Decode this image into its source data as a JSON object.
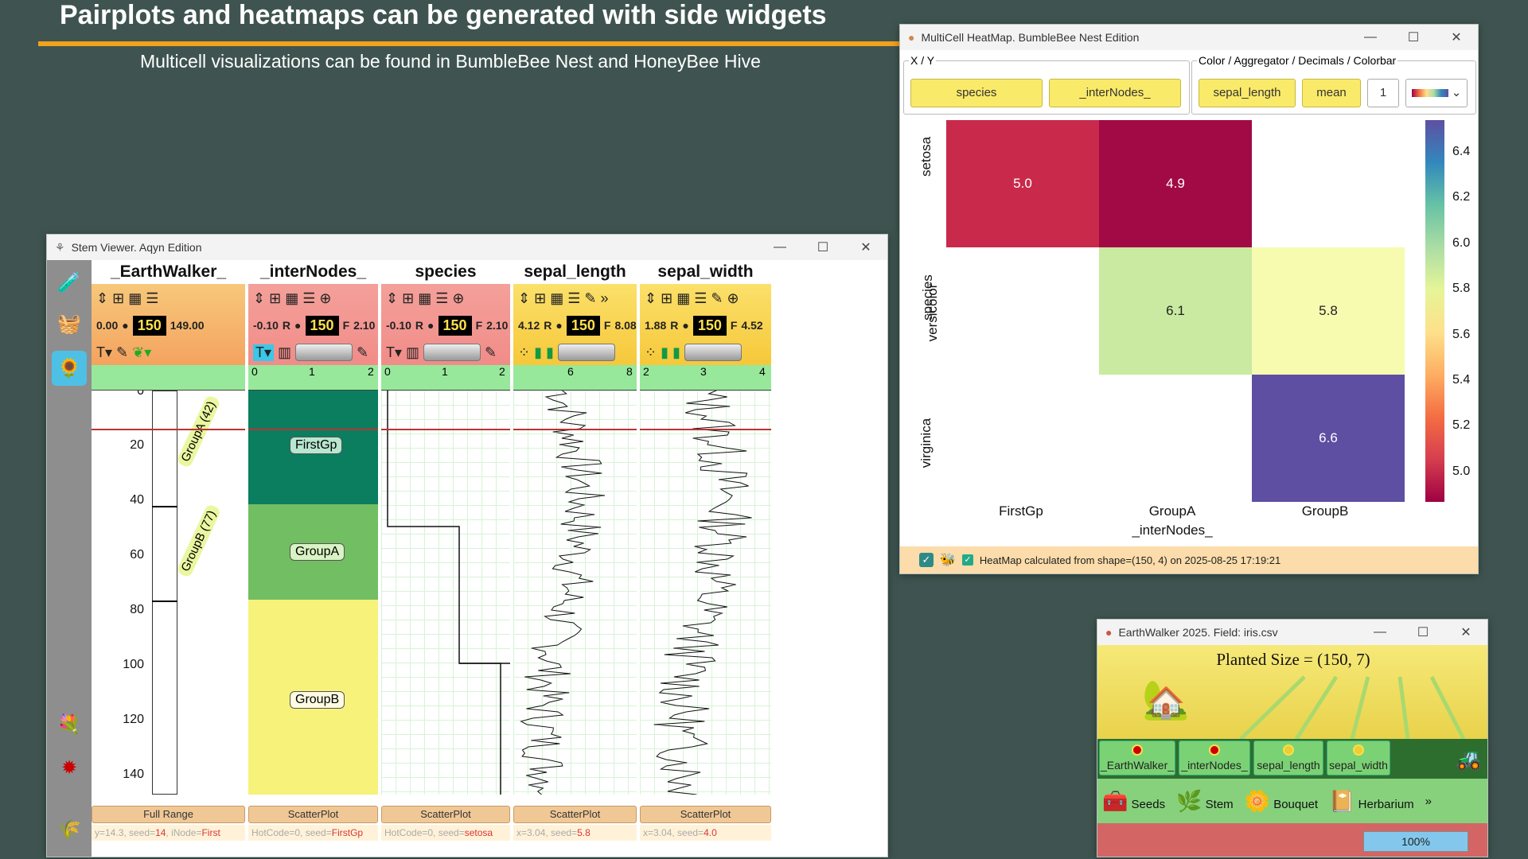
{
  "slide": {
    "title": "Pairplots and heatmaps can be generated with side widgets",
    "subtitle": "Multicell visualizations can be found in BumbleBee Nest and HoneyBee Hive"
  },
  "stem_viewer": {
    "title": "Stem Viewer. Aqyn Edition",
    "columns": [
      {
        "header": "_EarthWalker_",
        "left": "0.00",
        "count": "150",
        "right": "149.00",
        "footer": "Full Range",
        "status_prefix": "y=14.3, seed=",
        "status_hi": "14",
        "status_mid": ", iNode=",
        "status_tail": "First"
      },
      {
        "header": "_interNodes_",
        "left": "-0.10",
        "r": "R",
        "count": "150",
        "f": "F",
        "right": "2.10",
        "footer": "ScatterPlot",
        "status_prefix": "HotCode=0, seed=",
        "status_hi": "FirstGp",
        "ticks": [
          "0",
          "1",
          "2"
        ]
      },
      {
        "header": "species",
        "left": "-0.10",
        "r": "R",
        "count": "150",
        "f": "F",
        "right": "2.10",
        "footer": "ScatterPlot",
        "status_prefix": "HotCode=0, seed=",
        "status_hi": "setosa",
        "ticks": [
          "0",
          "1",
          "2"
        ]
      },
      {
        "header": "sepal_length",
        "left": "4.12",
        "r": "R",
        "count": "150",
        "f": "F",
        "right": "8.08",
        "footer": "ScatterPlot",
        "status_prefix": "x=3.04, seed=",
        "status_hi": "5.8",
        "ticks": [
          "6",
          "8"
        ]
      },
      {
        "header": "sepal_width",
        "left": "1.88",
        "r": "R",
        "count": "150",
        "f": "F",
        "right": "4.52",
        "footer": "ScatterPlot",
        "status_prefix": "x=3.04, seed=",
        "status_hi": "4.0",
        "ticks": [
          "2",
          "3",
          "4"
        ]
      }
    ],
    "depth_ticks": [
      "0",
      "20",
      "40",
      "60",
      "80",
      "100",
      "120",
      "140"
    ],
    "groups_labels": [
      "GroupA (42)",
      "GroupB (77)"
    ],
    "internodes_groups": [
      "FirstGp",
      "GroupA",
      "GroupB"
    ]
  },
  "heatmap": {
    "title": "MultiCell HeatMap. BumbleBee Nest Edition",
    "xy_legend": "X / Y",
    "color_legend": "Color / Aggregator / Decimals / Colorbar",
    "x_select": "species",
    "y_select": "_interNodes_",
    "color_select": "sepal_length",
    "aggregator": "mean",
    "decimals": "1",
    "y_axis_label": "species",
    "x_axis_label": "_interNodes_",
    "row_labels": [
      "setosa",
      "versicolor",
      "virginica"
    ],
    "col_labels": [
      "FirstGp",
      "GroupA",
      "GroupB"
    ],
    "cells": [
      {
        "row": 0,
        "col": 0,
        "value": "5.0",
        "color": "#c92a4b"
      },
      {
        "row": 0,
        "col": 1,
        "value": "4.9",
        "color": "#a10a44"
      },
      {
        "row": 1,
        "col": 1,
        "value": "6.1",
        "color": "#c9eaa0"
      },
      {
        "row": 1,
        "col": 2,
        "value": "5.8",
        "color": "#f6fbb0"
      },
      {
        "row": 2,
        "col": 2,
        "value": "6.6",
        "color": "#5e4fa2"
      }
    ],
    "colorbar_ticks": [
      "6.4",
      "6.2",
      "6.0",
      "5.8",
      "5.6",
      "5.4",
      "5.2",
      "5.0"
    ],
    "status": "HeatMap calculated from shape=(150, 4) on 2025-08-25 17:19:21"
  },
  "earthwalker": {
    "title": "EarthWalker 2025. Field: iris.csv",
    "planted": "Planted Size = (150, 7)",
    "fields": [
      "_EarthWalker_",
      "_interNodes_",
      "sepal_length",
      "sepal_width"
    ],
    "actions": [
      "Seeds",
      "Stem",
      "Bouquet",
      "Herbarium"
    ],
    "progress": "100%",
    "progress_fraction": 1.0
  }
}
